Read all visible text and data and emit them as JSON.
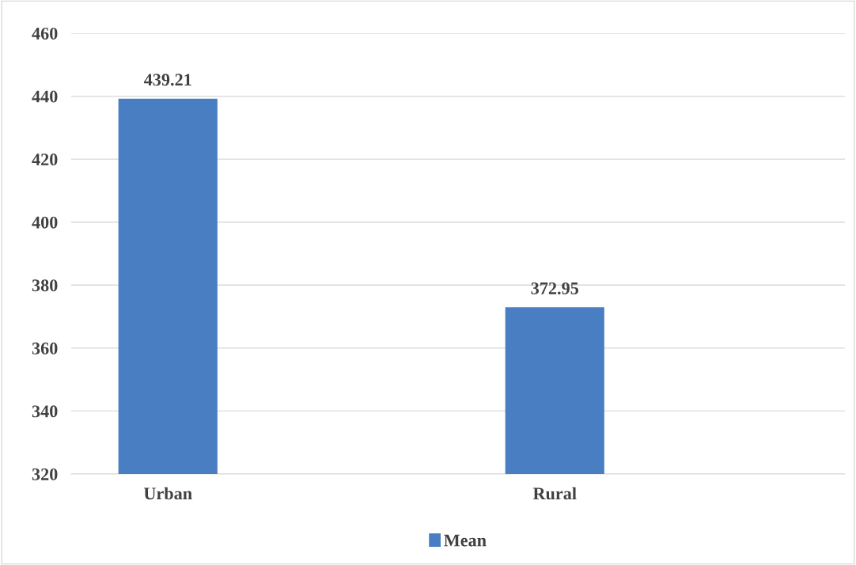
{
  "chart_data": {
    "type": "bar",
    "categories": [
      "Urban",
      "Rural"
    ],
    "series": [
      {
        "name": "Mean",
        "color": "#4a7ec2",
        "values": [
          439.21,
          372.95
        ]
      }
    ],
    "ylim": [
      320,
      460
    ],
    "yticks": [
      320,
      340,
      360,
      380,
      400,
      420,
      440,
      460
    ],
    "grid": "y",
    "legend": "bottom",
    "data_labels": true
  }
}
